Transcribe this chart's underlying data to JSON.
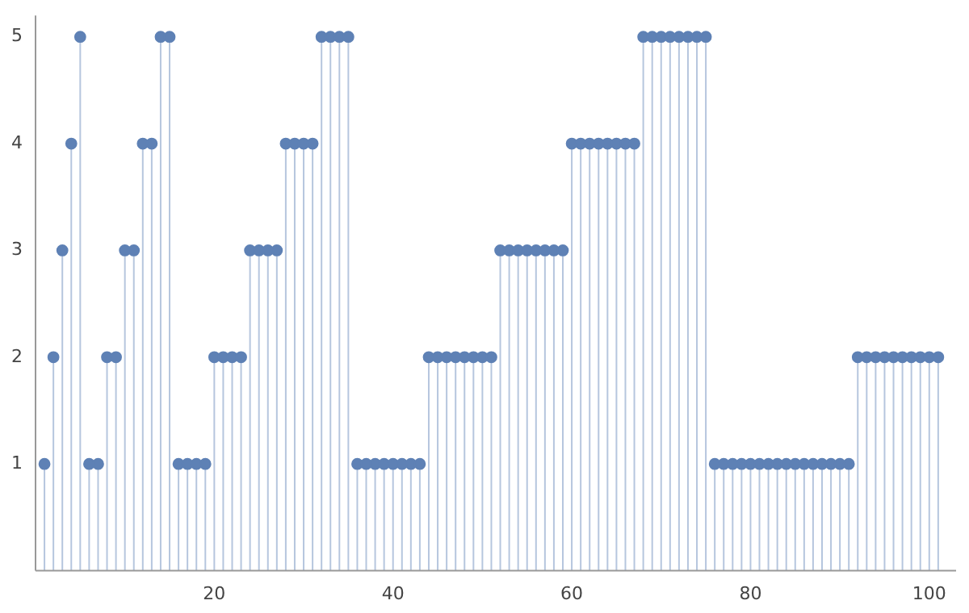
{
  "chart_data": {
    "type": "lollipop",
    "x": [
      1,
      2,
      3,
      4,
      5,
      6,
      7,
      8,
      9,
      10,
      11,
      12,
      13,
      14,
      15,
      16,
      17,
      18,
      19,
      20,
      21,
      22,
      23,
      24,
      25,
      26,
      27,
      28,
      29,
      30,
      31,
      32,
      33,
      34,
      35,
      36,
      37,
      38,
      39,
      40,
      41,
      42,
      43,
      44,
      45,
      46,
      47,
      48,
      49,
      50,
      51,
      52,
      53,
      54,
      55,
      56,
      57,
      58,
      59,
      60,
      61,
      62,
      63,
      64,
      65,
      66,
      67,
      68,
      69,
      70,
      71,
      72,
      73,
      74,
      75,
      76,
      77,
      78,
      79,
      80,
      81,
      82,
      83,
      84,
      85,
      86,
      87,
      88,
      89,
      90,
      91,
      92,
      93,
      94,
      95,
      96,
      97,
      98,
      99,
      100,
      101
    ],
    "values": [
      1,
      2,
      3,
      4,
      5,
      1,
      1,
      2,
      2,
      3,
      3,
      4,
      4,
      5,
      5,
      1,
      1,
      1,
      1,
      2,
      2,
      2,
      2,
      3,
      3,
      3,
      3,
      4,
      4,
      4,
      4,
      5,
      5,
      5,
      5,
      1,
      1,
      1,
      1,
      1,
      1,
      1,
      1,
      2,
      2,
      2,
      2,
      2,
      2,
      2,
      2,
      3,
      3,
      3,
      3,
      3,
      3,
      3,
      3,
      4,
      4,
      4,
      4,
      4,
      4,
      4,
      4,
      5,
      5,
      5,
      5,
      5,
      5,
      5,
      5,
      1,
      1,
      1,
      1,
      1,
      1,
      1,
      1,
      1,
      1,
      1,
      1,
      1,
      1,
      1,
      1,
      2,
      2,
      2,
      2,
      2,
      2,
      2,
      2,
      2,
      2
    ],
    "color": "#5e81b5",
    "marker": "circle",
    "grid": false,
    "legend": false,
    "xlim": [
      0,
      103
    ],
    "xticks": [
      20,
      40,
      60,
      80,
      100
    ],
    "ylim": [
      0,
      5.2
    ],
    "yticks": [
      1,
      2,
      3,
      4,
      5
    ]
  }
}
